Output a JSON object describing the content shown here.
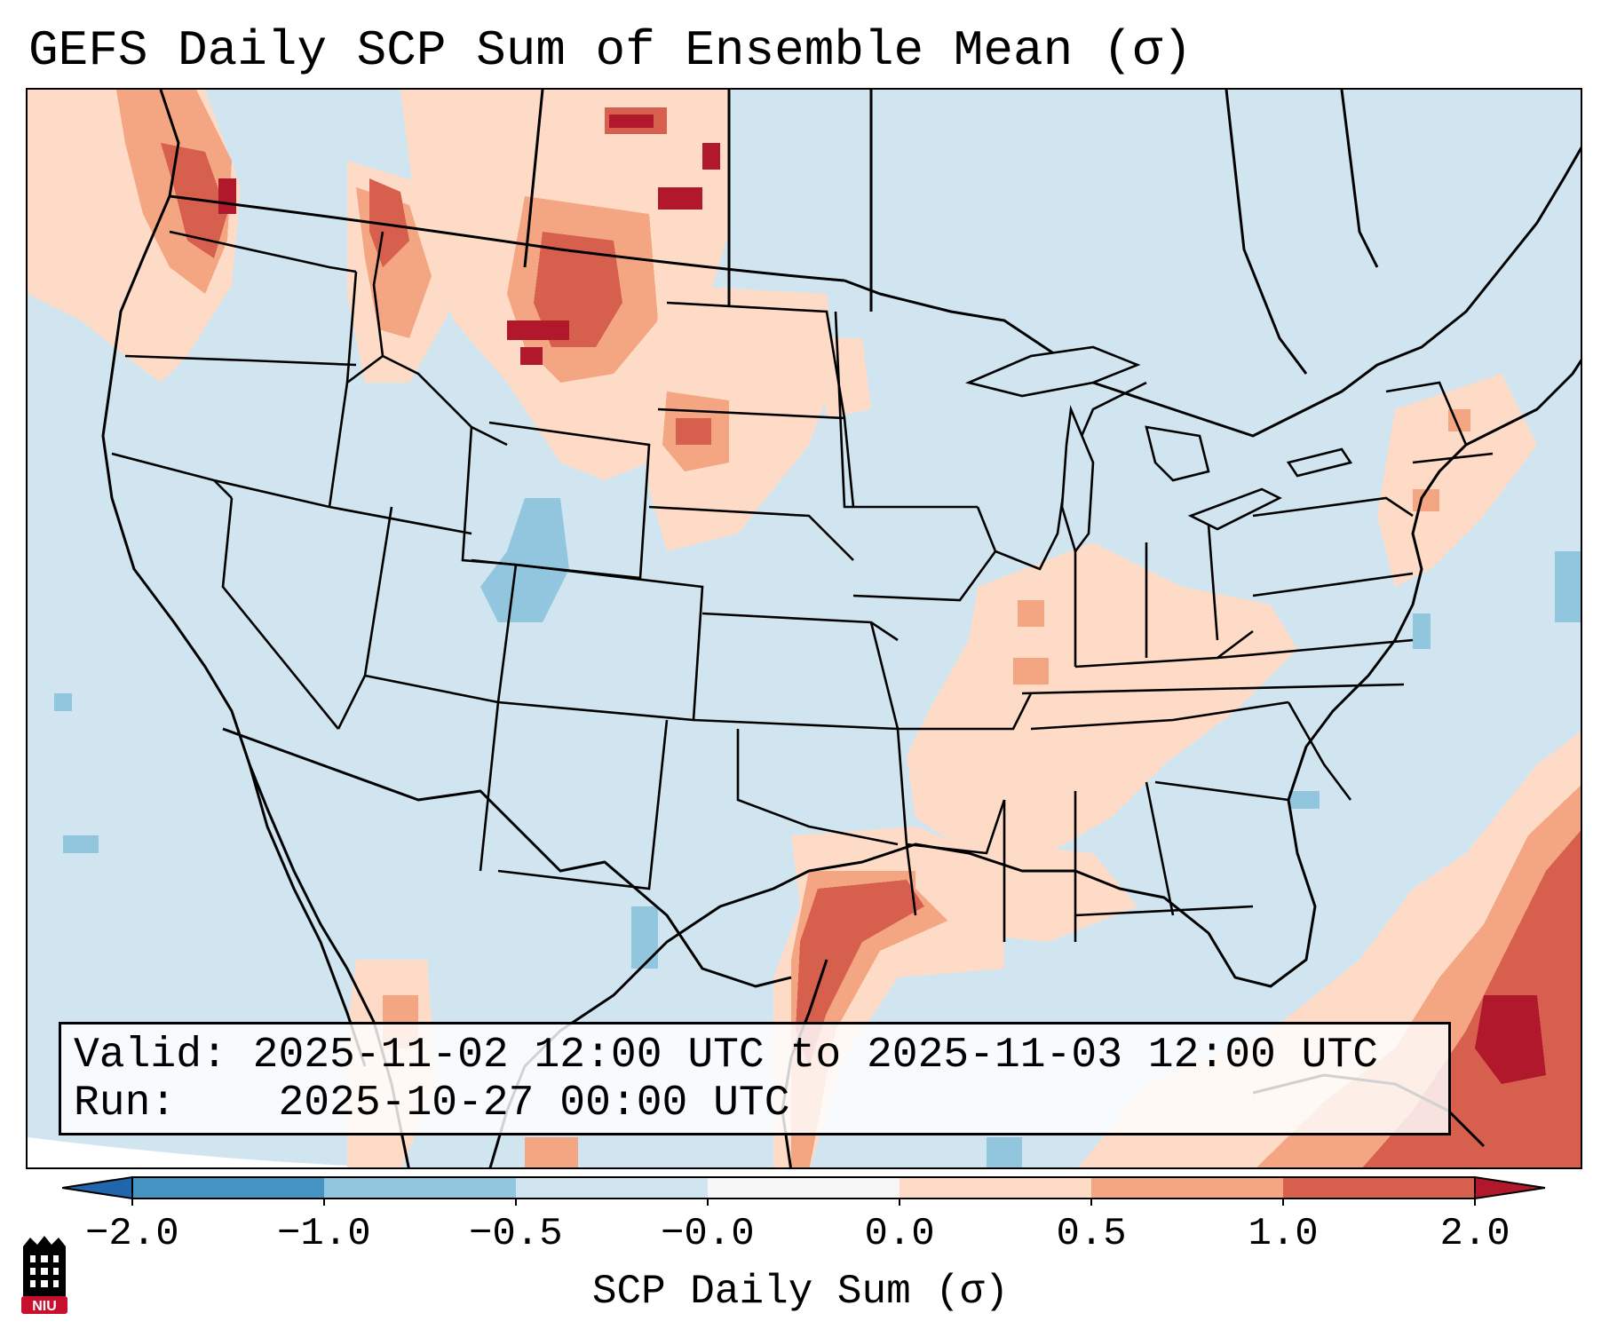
{
  "title": "GEFS Daily SCP Sum of Ensemble Mean (σ)",
  "info": {
    "valid_label": "Valid:",
    "valid_value": "2025-11-02 12:00 UTC to 2025-11-03 12:00 UTC",
    "run_label": "Run:",
    "run_value": "2025-10-27 00:00 UTC"
  },
  "colorbar": {
    "label": "SCP Daily Sum (σ)",
    "ticks": [
      "−2.0",
      "−1.0",
      "−0.5",
      "−0.0",
      "0.0",
      "0.5",
      "1.0",
      "2.0"
    ],
    "bins": [
      {
        "range": "< -2.0",
        "color": "#2166ac"
      },
      {
        "range": "-2.0 to -1.0",
        "color": "#4393c3"
      },
      {
        "range": "-1.0 to -0.5",
        "color": "#92c5de"
      },
      {
        "range": "-0.5 to -0.0",
        "color": "#d1e5f0"
      },
      {
        "range": "-0.0 to 0.0",
        "color": "#f7f7f7"
      },
      {
        "range": "0.0 to 0.5",
        "color": "#fddbc7"
      },
      {
        "range": "0.5 to 1.0",
        "color": "#f4a582"
      },
      {
        "range": "1.0 to 2.0",
        "color": "#d6604d"
      },
      {
        "range": "> 2.0",
        "color": "#b2182b"
      }
    ]
  },
  "field_regions": [
    {
      "name": "pacific-northwest",
      "level": "0.5 to 2.0"
    },
    {
      "name": "northern-rockies-montana",
      "level": "1.0 to 2.0+"
    },
    {
      "name": "northern-plains",
      "level": "0.0 to 1.0"
    },
    {
      "name": "mid-south-tennessee-valley",
      "level": "0.0 to 0.5"
    },
    {
      "name": "texas-gulf-coast",
      "level": "0.5 to 2.0"
    },
    {
      "name": "western-atlantic-caribbean",
      "level": "1.0 to 2.0+"
    },
    {
      "name": "colorado-rockies",
      "level": "-1.0 to -0.5"
    }
  ],
  "logo": {
    "text": "NIU",
    "colors": [
      "#c8102e",
      "#000000"
    ]
  }
}
